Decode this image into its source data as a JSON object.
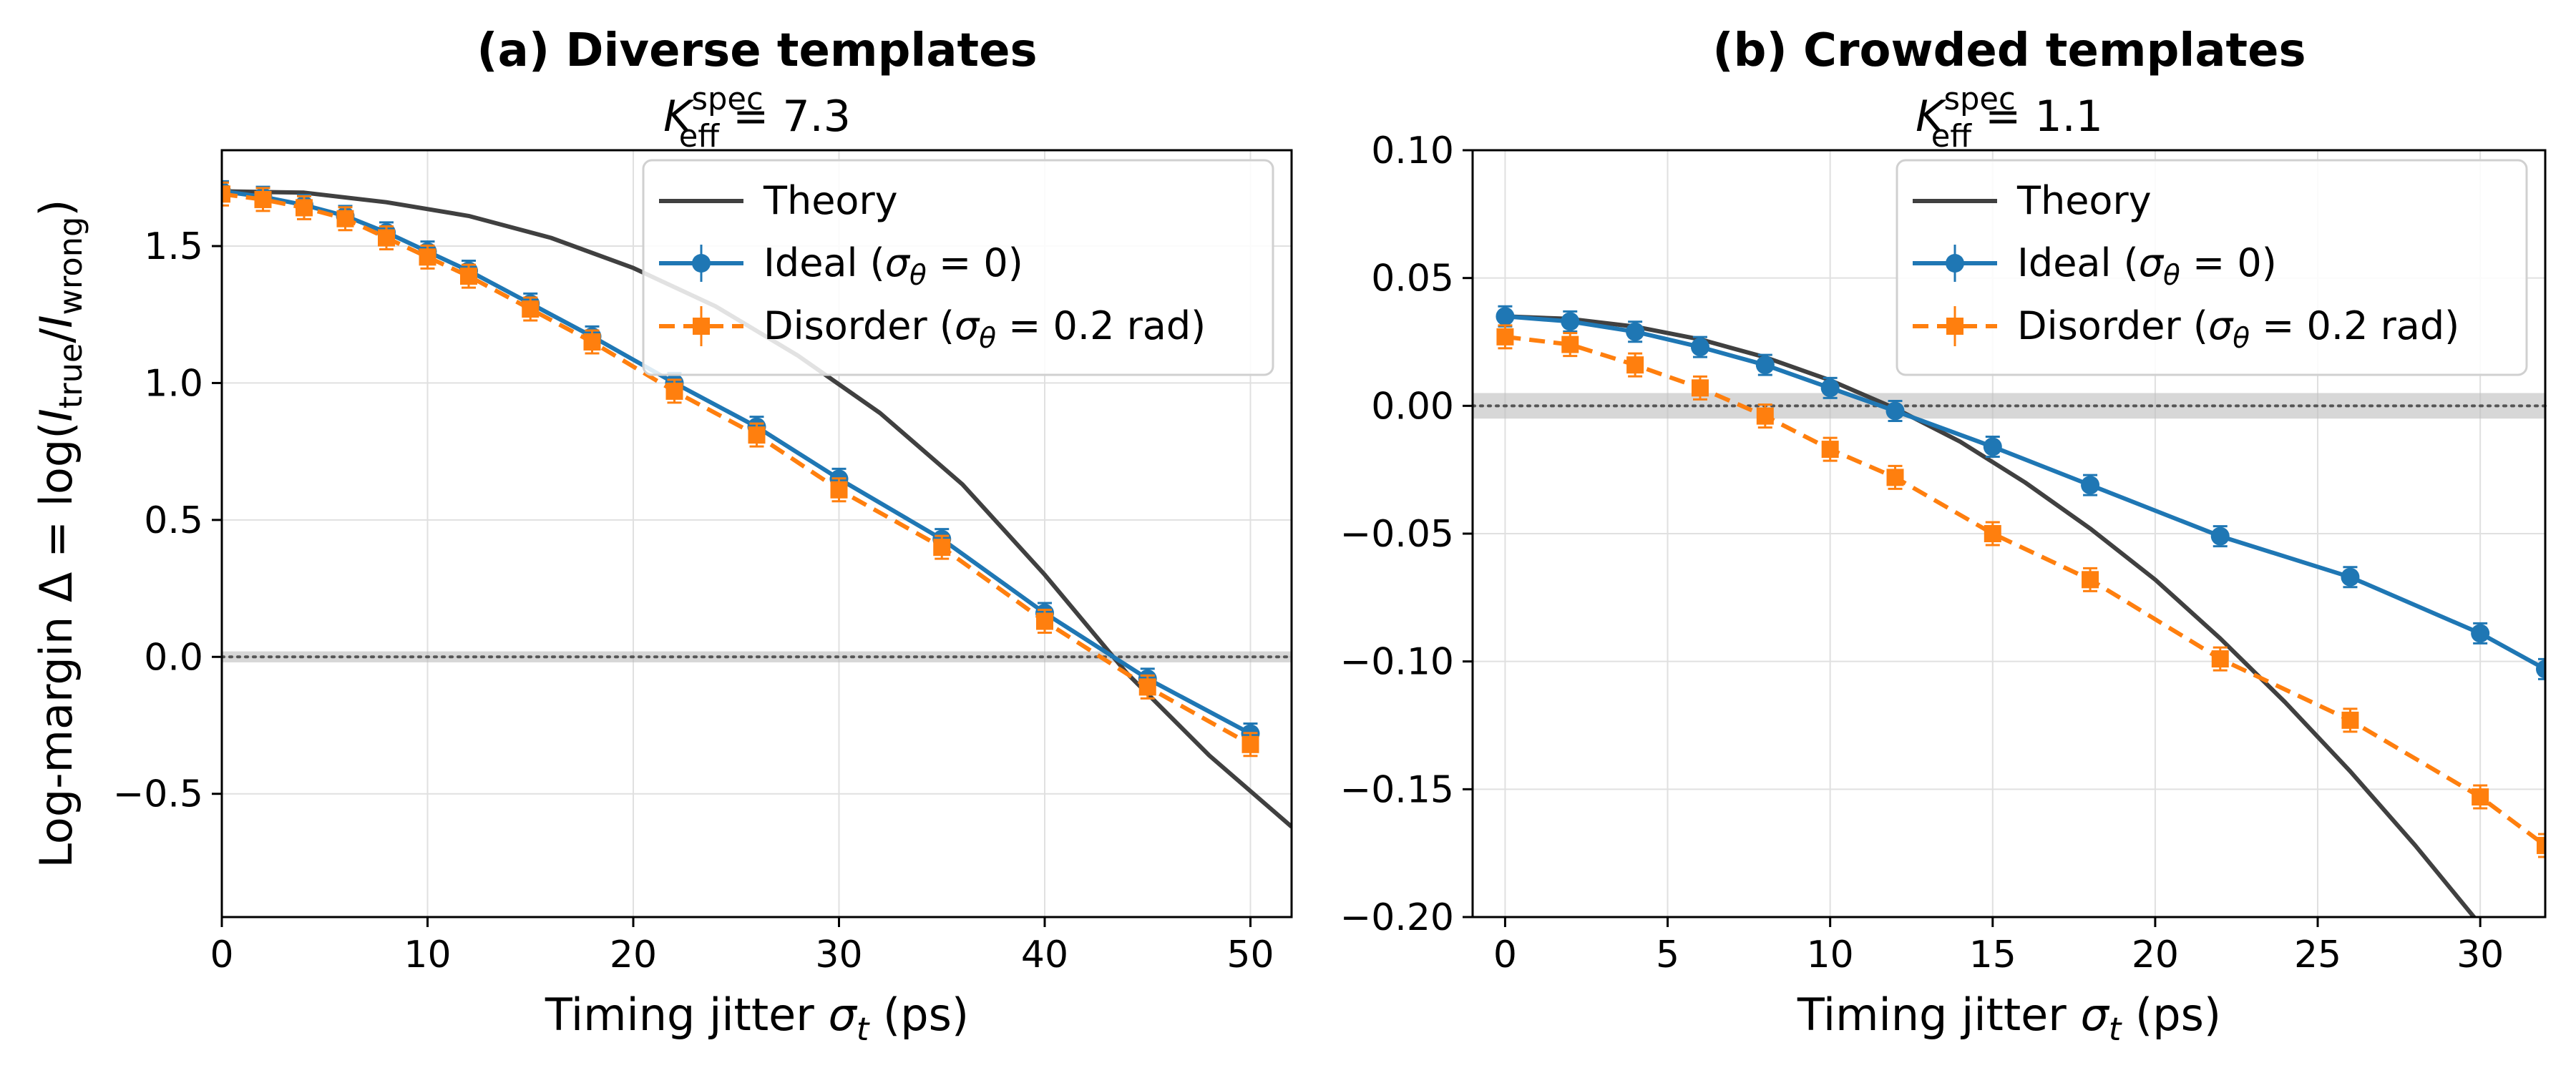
{
  "colors": {
    "theory": "#404040",
    "ideal": "#1f77b4",
    "disorder": "#ff7f0e",
    "grid": "#e0e0e0",
    "band": "#bdbdbd"
  },
  "chart_data": [
    {
      "type": "line",
      "title": "(a) Diverse templates",
      "subtitle": {
        "symbol": "K",
        "sup": "spec",
        "sub": "eff",
        "value": "= 7.3"
      },
      "xlabel": "Timing jitter σ_t (ps)",
      "ylabel": "Log-margin Δ = log(I_true/I_wrong)",
      "xlim": [
        0,
        52
      ],
      "ylim": [
        -0.95,
        1.85
      ],
      "xticks": [
        0,
        10,
        20,
        30,
        40,
        50
      ],
      "xtick_labels": [
        "0",
        "10",
        "20",
        "30",
        "40",
        "50"
      ],
      "yticks": [
        -0.5,
        0.0,
        0.5,
        1.0,
        1.5
      ],
      "ytick_labels": [
        "−0.5",
        "0.0",
        "0.5",
        "1.0",
        "1.5"
      ],
      "grid": true,
      "legend_position": "top-right",
      "reference_line": {
        "y": 0,
        "band": 0.02,
        "style": "dotted"
      },
      "series": [
        {
          "name": "Theory",
          "kind": "curve",
          "x": [
            0,
            4,
            8,
            12,
            16,
            20,
            24,
            28,
            32,
            36,
            40,
            44,
            48,
            52
          ],
          "y": [
            1.7,
            1.695,
            1.66,
            1.61,
            1.53,
            1.42,
            1.28,
            1.1,
            0.89,
            0.63,
            0.3,
            -0.06,
            -0.36,
            -0.62
          ]
        },
        {
          "name": "Ideal (σθ = 0)",
          "kind": "markers-circle",
          "x": [
            0,
            2,
            4,
            6,
            8,
            10,
            12,
            15,
            18,
            22,
            26,
            30,
            35,
            40,
            45,
            50
          ],
          "y": [
            1.7,
            1.68,
            1.65,
            1.61,
            1.55,
            1.48,
            1.41,
            1.29,
            1.17,
            1.0,
            0.84,
            0.65,
            0.43,
            0.16,
            -0.08,
            -0.28
          ]
        },
        {
          "name": "Disorder (σθ = 0.2 rad)",
          "kind": "markers-square-dashed",
          "x": [
            0,
            2,
            4,
            6,
            8,
            10,
            12,
            15,
            18,
            22,
            26,
            30,
            35,
            40,
            45,
            50
          ],
          "y": [
            1.69,
            1.67,
            1.64,
            1.6,
            1.53,
            1.46,
            1.39,
            1.27,
            1.15,
            0.97,
            0.81,
            0.61,
            0.4,
            0.13,
            -0.11,
            -0.32
          ]
        }
      ]
    },
    {
      "type": "line",
      "title": "(b) Crowded templates",
      "subtitle": {
        "symbol": "K",
        "sup": "spec",
        "sub": "eff",
        "value": "= 1.1"
      },
      "xlabel": "Timing jitter σ_t (ps)",
      "ylabel": "",
      "xlim": [
        -1,
        32
      ],
      "ylim": [
        -0.2,
        0.1
      ],
      "xticks": [
        0,
        5,
        10,
        15,
        20,
        25,
        30
      ],
      "xtick_labels": [
        "0",
        "5",
        "10",
        "15",
        "20",
        "25",
        "30"
      ],
      "yticks": [
        -0.2,
        -0.15,
        -0.1,
        -0.05,
        0.0,
        0.05,
        0.1
      ],
      "ytick_labels": [
        "−0.20",
        "−0.15",
        "−0.10",
        "−0.05",
        "0.00",
        "0.05",
        "0.10"
      ],
      "grid": true,
      "legend_position": "top-right",
      "reference_line": {
        "y": 0,
        "band": 0.005,
        "style": "dotted"
      },
      "series": [
        {
          "name": "Theory",
          "kind": "curve",
          "x": [
            0,
            2,
            4,
            6,
            8,
            10,
            12,
            14,
            16,
            18,
            20,
            22,
            24,
            26,
            28,
            30,
            31
          ],
          "y": [
            0.035,
            0.034,
            0.031,
            0.026,
            0.019,
            0.01,
            -0.001,
            -0.014,
            -0.03,
            -0.048,
            -0.068,
            -0.091,
            -0.116,
            -0.143,
            -0.172,
            -0.203,
            -0.212
          ]
        },
        {
          "name": "Ideal (σθ = 0)",
          "kind": "markers-circle",
          "x": [
            0,
            2,
            4,
            6,
            8,
            10,
            12,
            15,
            18,
            22,
            26,
            30,
            32
          ],
          "y": [
            0.035,
            0.033,
            0.029,
            0.023,
            0.016,
            0.007,
            -0.002,
            -0.016,
            -0.031,
            -0.051,
            -0.067,
            -0.089,
            -0.103
          ]
        },
        {
          "name": "Disorder (σθ = 0.2 rad)",
          "kind": "markers-square-dashed",
          "x": [
            0,
            2,
            4,
            6,
            8,
            10,
            12,
            15,
            18,
            22,
            26,
            30,
            32
          ],
          "y": [
            0.027,
            0.024,
            0.016,
            0.007,
            -0.004,
            -0.017,
            -0.028,
            -0.05,
            -0.068,
            -0.099,
            -0.123,
            -0.153,
            -0.172
          ]
        }
      ]
    }
  ]
}
